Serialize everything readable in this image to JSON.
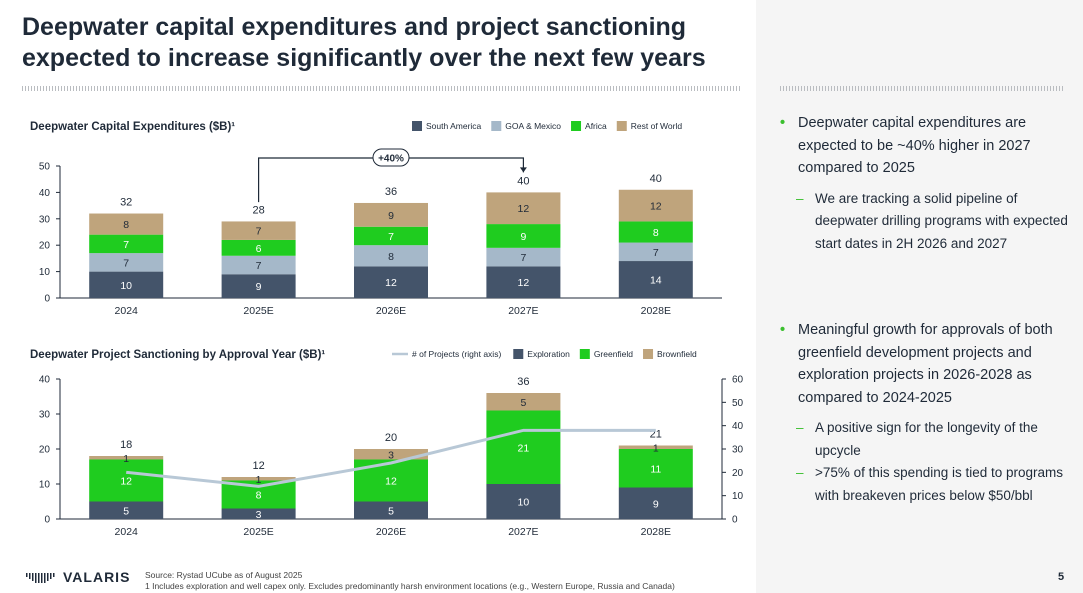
{
  "title": "Deepwater capital expenditures and project sanctioning expected to increase significantly over the next few years",
  "colors": {
    "navy": "#44546a",
    "light_blue": "#a5b8c9",
    "green": "#1fcc1f",
    "tan": "#bfa47c",
    "line": "#b8c8d6",
    "bullet_green": "#3bbf2e"
  },
  "chart_data": [
    {
      "type": "bar",
      "stacked": true,
      "title": "Deepwater Capital Expenditures ($B)¹",
      "categories": [
        "2024",
        "2025E",
        "2026E",
        "2027E",
        "2028E"
      ],
      "series": [
        {
          "name": "South America",
          "values": [
            10,
            9,
            12,
            12,
            14
          ],
          "color": "#44546a"
        },
        {
          "name": "GOA & Mexico",
          "values": [
            7,
            7,
            8,
            7,
            7
          ],
          "color": "#a5b8c9"
        },
        {
          "name": "Africa",
          "values": [
            7,
            6,
            7,
            9,
            8
          ],
          "color": "#1fcc1f"
        },
        {
          "name": "Rest of World",
          "values": [
            8,
            7,
            9,
            12,
            12
          ],
          "color": "#bfa47c"
        }
      ],
      "totals": [
        32,
        28,
        36,
        40,
        40
      ],
      "yticks": [
        0,
        10,
        20,
        30,
        40,
        50
      ],
      "ylim": [
        0,
        50
      ],
      "annotation": "+40%",
      "legend_position": "top-right"
    },
    {
      "type": "bar",
      "stacked": true,
      "title": "Deepwater Project Sanctioning by Approval Year ($B)¹",
      "categories": [
        "2024",
        "2025E",
        "2026E",
        "2027E",
        "2028E"
      ],
      "series": [
        {
          "name": "Exploration",
          "values": [
            5,
            3,
            5,
            10,
            9
          ],
          "color": "#44546a"
        },
        {
          "name": "Greenfield",
          "values": [
            12,
            8,
            12,
            21,
            11
          ],
          "color": "#1fcc1f"
        },
        {
          "name": "Brownfield",
          "values": [
            1,
            1,
            3,
            5,
            1
          ],
          "color": "#bfa47c"
        }
      ],
      "line_series": {
        "name": "# of Projects (right axis)",
        "values": [
          20,
          14,
          24,
          38,
          38
        ],
        "color": "#b8c8d6"
      },
      "totals": [
        18,
        12,
        20,
        36,
        21
      ],
      "yticks": [
        0,
        10,
        20,
        30,
        40
      ],
      "ylim": [
        0,
        40
      ],
      "y2ticks": [
        0,
        10,
        20,
        30,
        40,
        50,
        60
      ],
      "y2lim": [
        0,
        60
      ],
      "legend_position": "top-right"
    }
  ],
  "bullets": [
    {
      "text": "Deepwater capital expenditures are expected to be ~40% higher in 2027 compared to 2025",
      "subs": [
        "We are tracking a solid pipeline of deepwater drilling programs with expected start dates in 2H 2026 and 2027"
      ]
    },
    {
      "text": "Meaningful growth for approvals of both greenfield development projects and exploration projects in 2026-2028 as compared to 2024-2025",
      "subs": [
        "A positive sign for the longevity of the upcycle",
        ">75% of this spending is tied to programs with breakeven prices below $50/bbl"
      ]
    }
  ],
  "footer": {
    "logo": "VALARIS",
    "source": "Source: Rystad UCube as of August 2025",
    "footnote": "1 Includes exploration and well capex only. Excludes predominantly harsh environment locations (e.g., Western Europe, Russia and Canada)",
    "page": "5"
  }
}
